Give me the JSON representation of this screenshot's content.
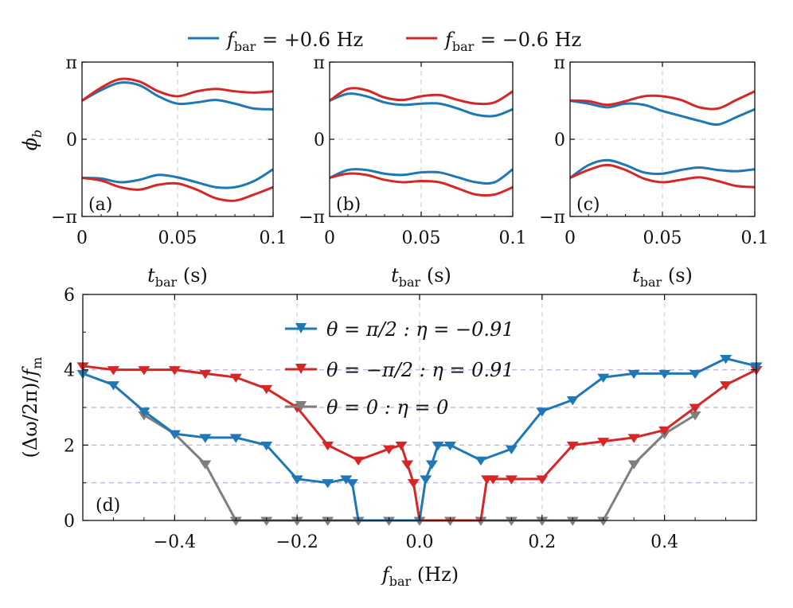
{
  "top_legend": [
    {
      "label": "f_bar = +0.6 Hz",
      "sym": "f",
      "sub": "bar",
      "rest": " = +0.6 Hz",
      "color": "#1f77b4"
    },
    {
      "label": "f_bar = −0.6 Hz",
      "sym": "f",
      "sub": "bar",
      "rest": " = −0.6 Hz",
      "color": "#d62728"
    }
  ],
  "top_panels_common": {
    "ylabel": "ϕb",
    "ylabel_sym": "ϕ",
    "ylabel_sub": "b",
    "xlabel": "t_bar (s)",
    "xlabel_sym": "t",
    "xlabel_sub": "bar",
    "xlabel_rest": " (s)",
    "xticks": [
      0,
      0.05,
      0.1
    ],
    "xtick_labels": [
      "0",
      "0.05",
      "0.1"
    ],
    "yticks": [
      -3.14159,
      0,
      3.14159
    ],
    "ytick_labels": [
      "−π",
      "0",
      "π"
    ],
    "xlim": [
      0,
      0.1
    ],
    "ylim": [
      -3.14159,
      3.14159
    ]
  },
  "bottom_legend": [
    {
      "label": "θ = π/2 : η = −0.91",
      "color": "#1f77b4"
    },
    {
      "label": "θ = −π/2 : η = 0.91",
      "color": "#d62728"
    },
    {
      "label": "θ = 0 : η = 0",
      "color": "#7f7f7f"
    }
  ],
  "bottom_axes": {
    "xlabel": "f_bar (Hz)",
    "xlabel_sym": "f",
    "xlabel_sub": "bar",
    "xlabel_rest": " (Hz)",
    "ylabel": "(Δω/2π)/f_m",
    "ylabel_main": "(Δω/2π)/",
    "ylabel_sym": "f",
    "ylabel_sub": "m"
  },
  "chart_data": [
    {
      "type": "line",
      "panel_label": "(a)",
      "x": [
        0,
        0.01,
        0.02,
        0.03,
        0.04,
        0.05,
        0.06,
        0.07,
        0.08,
        0.09,
        0.1
      ],
      "series": [
        {
          "name": "f_bar = +0.6 Hz (upper)",
          "color": "#1f77b4",
          "values": [
            1.57,
            2.0,
            2.3,
            2.2,
            1.75,
            1.45,
            1.5,
            1.6,
            1.45,
            1.25,
            1.22
          ]
        },
        {
          "name": "f_bar = −0.6 Hz (upper)",
          "color": "#d62728",
          "values": [
            1.57,
            2.1,
            2.45,
            2.35,
            1.95,
            1.75,
            1.95,
            2.05,
            1.95,
            1.9,
            1.95
          ]
        },
        {
          "name": "f_bar = +0.6 Hz (lower)",
          "color": "#1f77b4",
          "values": [
            -1.57,
            -1.6,
            -1.75,
            -1.65,
            -1.45,
            -1.55,
            -1.75,
            -1.95,
            -1.95,
            -1.7,
            -1.22
          ]
        },
        {
          "name": "f_bar = −0.6 Hz (lower)",
          "color": "#d62728",
          "values": [
            -1.57,
            -1.68,
            -1.95,
            -2.05,
            -1.85,
            -1.8,
            -2.05,
            -2.4,
            -2.5,
            -2.25,
            -1.95
          ]
        }
      ],
      "xlim": [
        0,
        0.1
      ],
      "ylim": [
        -3.14159,
        3.14159
      ]
    },
    {
      "type": "line",
      "panel_label": "(b)",
      "x": [
        0,
        0.01,
        0.02,
        0.03,
        0.04,
        0.05,
        0.06,
        0.07,
        0.08,
        0.09,
        0.1
      ],
      "series": [
        {
          "name": "f_bar = +0.6 Hz (upper)",
          "color": "#1f77b4",
          "values": [
            1.57,
            1.85,
            1.75,
            1.5,
            1.4,
            1.45,
            1.45,
            1.25,
            1.0,
            0.95,
            1.22
          ]
        },
        {
          "name": "f_bar = −0.6 Hz (upper)",
          "color": "#d62728",
          "values": [
            1.57,
            2.05,
            2.0,
            1.7,
            1.6,
            1.75,
            1.8,
            1.6,
            1.45,
            1.5,
            1.95
          ]
        },
        {
          "name": "f_bar = +0.6 Hz (lower)",
          "color": "#1f77b4",
          "values": [
            -1.57,
            -1.25,
            -1.25,
            -1.4,
            -1.45,
            -1.35,
            -1.35,
            -1.55,
            -1.75,
            -1.75,
            -1.22
          ]
        },
        {
          "name": "f_bar = −0.6 Hz (lower)",
          "color": "#d62728",
          "values": [
            -1.57,
            -1.4,
            -1.45,
            -1.65,
            -1.75,
            -1.7,
            -1.75,
            -2.0,
            -2.25,
            -2.25,
            -1.95
          ]
        }
      ],
      "xlim": [
        0,
        0.1
      ],
      "ylim": [
        -3.14159,
        3.14159
      ]
    },
    {
      "type": "line",
      "panel_label": "(c)",
      "x": [
        0,
        0.01,
        0.02,
        0.03,
        0.04,
        0.05,
        0.06,
        0.07,
        0.08,
        0.09,
        0.1
      ],
      "series": [
        {
          "name": "f_bar = +0.6 Hz (upper)",
          "color": "#1f77b4",
          "values": [
            1.57,
            1.45,
            1.3,
            1.45,
            1.4,
            1.15,
            0.95,
            0.75,
            0.6,
            0.9,
            1.22
          ]
        },
        {
          "name": "f_bar = −0.6 Hz (upper)",
          "color": "#d62728",
          "values": [
            1.57,
            1.55,
            1.4,
            1.55,
            1.75,
            1.75,
            1.6,
            1.3,
            1.25,
            1.6,
            1.95
          ]
        },
        {
          "name": "f_bar = +0.6 Hz (lower)",
          "color": "#1f77b4",
          "values": [
            -1.57,
            -1.05,
            -0.85,
            -1.05,
            -1.35,
            -1.4,
            -1.25,
            -1.15,
            -1.25,
            -1.3,
            -1.22
          ]
        },
        {
          "name": "f_bar = −0.6 Hz (lower)",
          "color": "#d62728",
          "values": [
            -1.57,
            -1.25,
            -1.05,
            -1.25,
            -1.6,
            -1.75,
            -1.65,
            -1.55,
            -1.7,
            -1.9,
            -1.95
          ]
        }
      ],
      "xlim": [
        0,
        0.1
      ],
      "ylim": [
        -3.14159,
        3.14159
      ]
    },
    {
      "type": "line",
      "panel_label": "(d)",
      "xlabel": "f_bar (Hz)",
      "ylabel": "(Δω/2π)/f_m",
      "xlim": [
        -0.55,
        0.55
      ],
      "ylim": [
        0,
        6
      ],
      "xticks": [
        -0.4,
        -0.2,
        0.0,
        0.2,
        0.4
      ],
      "xtick_labels": [
        "−0.4",
        "−0.2",
        "0.0",
        "0.2",
        "0.4"
      ],
      "yticks": [
        0,
        2,
        4,
        6
      ],
      "ytick_labels": [
        "0",
        "2",
        "4",
        "6"
      ],
      "hlines": [
        1,
        2,
        3,
        4
      ],
      "series": [
        {
          "name": "θ = π/2 : η = −0.91",
          "color": "#1f77b4",
          "marker": "triangle-down",
          "x": [
            -0.55,
            -0.5,
            -0.45,
            -0.4,
            -0.35,
            -0.3,
            -0.25,
            -0.2,
            -0.15,
            -0.12,
            -0.11,
            -0.1,
            0.0,
            0.01,
            0.02,
            0.03,
            0.05,
            0.1,
            0.15,
            0.2,
            0.25,
            0.3,
            0.35,
            0.4,
            0.45,
            0.5,
            0.55
          ],
          "y": [
            3.9,
            3.6,
            2.9,
            2.3,
            2.2,
            2.2,
            2.0,
            1.1,
            1.0,
            1.1,
            1.0,
            0.0,
            0.0,
            1.1,
            1.5,
            2.0,
            2.0,
            1.6,
            1.9,
            2.9,
            3.2,
            3.8,
            3.9,
            3.9,
            3.9,
            4.3,
            4.1
          ],
          "markers": [
            true,
            true,
            true,
            true,
            true,
            true,
            true,
            true,
            true,
            true,
            true,
            false,
            false,
            true,
            true,
            true,
            true,
            true,
            true,
            true,
            true,
            true,
            true,
            true,
            true,
            true,
            true
          ]
        },
        {
          "name": "θ = −π/2 : η = 0.91",
          "color": "#d62728",
          "marker": "triangle-down",
          "x": [
            -0.55,
            -0.5,
            -0.45,
            -0.4,
            -0.35,
            -0.3,
            -0.25,
            -0.2,
            -0.15,
            -0.1,
            -0.05,
            -0.03,
            -0.02,
            -0.01,
            0.0,
            0.1,
            0.11,
            0.12,
            0.15,
            0.2,
            0.25,
            0.3,
            0.35,
            0.4,
            0.45,
            0.5,
            0.55
          ],
          "y": [
            4.1,
            4.0,
            4.0,
            4.0,
            3.9,
            3.8,
            3.5,
            3.0,
            2.0,
            1.6,
            1.9,
            2.0,
            1.5,
            1.0,
            0.0,
            0.0,
            1.1,
            1.1,
            1.1,
            1.1,
            2.0,
            2.1,
            2.2,
            2.4,
            3.0,
            3.6,
            4.0
          ],
          "markers": [
            true,
            true,
            true,
            true,
            true,
            true,
            true,
            true,
            true,
            true,
            true,
            true,
            true,
            true,
            false,
            false,
            true,
            true,
            true,
            true,
            true,
            true,
            true,
            true,
            true,
            true,
            true
          ]
        },
        {
          "name": "θ = 0 : η = 0",
          "color": "#7f7f7f",
          "marker": "triangle-down",
          "x": [
            -0.45,
            -0.4,
            -0.35,
            -0.3,
            -0.25,
            -0.2,
            -0.15,
            -0.1,
            -0.05,
            0.0,
            0.05,
            0.1,
            0.15,
            0.2,
            0.25,
            0.3,
            0.35,
            0.4,
            0.45
          ],
          "y": [
            2.8,
            2.3,
            1.5,
            0.0,
            0.0,
            0.0,
            0.0,
            0.0,
            0.0,
            0.0,
            0.0,
            0.0,
            0.0,
            0.0,
            0.0,
            0.0,
            1.5,
            2.3,
            2.8
          ]
        }
      ]
    }
  ]
}
